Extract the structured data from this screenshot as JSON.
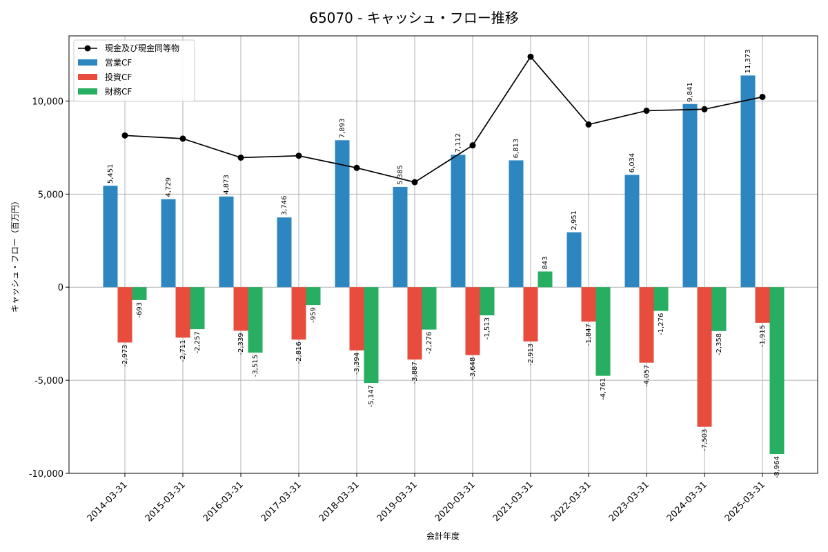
{
  "chart_data": {
    "type": "bar",
    "title": "65070 - キャッシュ・フロー推移",
    "xlabel": "会計年度",
    "ylabel": "キャッシュ・フロー（百万円）",
    "ylim": [
      -10000,
      13500
    ],
    "yticks": [
      -10000,
      -5000,
      0,
      5000,
      10000
    ],
    "ytick_labels": [
      "-10,000",
      "-5,000",
      "0",
      "5,000",
      "10,000"
    ],
    "grid": true,
    "legend_position": "top-left",
    "categories": [
      "2014-03-31",
      "2015-03-31",
      "2016-03-31",
      "2017-03-31",
      "2018-03-31",
      "2019-03-31",
      "2020-03-31",
      "2021-03-31",
      "2022-03-31",
      "2023-03-31",
      "2024-03-31",
      "2025-03-31"
    ],
    "series": [
      {
        "name": "営業CF",
        "kind": "bar",
        "color": "#2e86c1",
        "values": [
          5451,
          4729,
          4873,
          3746,
          7893,
          5385,
          7112,
          6813,
          2951,
          6034,
          9841,
          11373
        ],
        "labels": [
          "5,451",
          "4,729",
          "4,873",
          "3,746",
          "7,893",
          "5,385",
          "7,112",
          "6,813",
          "2,951",
          "6,034",
          "9,841",
          "11,373"
        ]
      },
      {
        "name": "投資CF",
        "kind": "bar",
        "color": "#e74c3c",
        "values": [
          -2973,
          -2711,
          -2339,
          -2816,
          -3394,
          -3887,
          -3648,
          -2913,
          -1847,
          -4057,
          -7503,
          -1915
        ],
        "labels": [
          "-2,973",
          "-2,711",
          "-2,339",
          "-2,816",
          "-3,394",
          "-3,887",
          "-3,648",
          "-2,913",
          "-1,847",
          "-4,057",
          "-7,503",
          "-1,915"
        ]
      },
      {
        "name": "財務CF",
        "kind": "bar",
        "color": "#27ae60",
        "values": [
          -693,
          -2257,
          -3515,
          -959,
          -5147,
          -2276,
          -1513,
          843,
          -4761,
          -1276,
          -2358,
          -8964
        ],
        "labels": [
          "-693",
          "-2,257",
          "-3,515",
          "-959",
          "-5,147",
          "-2,276",
          "-1,513",
          "843",
          "-4,761",
          "-1,276",
          "-2,358",
          "-8,964"
        ]
      },
      {
        "name": "現金及び現金同等物",
        "kind": "line",
        "color": "#000000",
        "values": [
          8150,
          7980,
          6960,
          7060,
          6410,
          5640,
          7620,
          12380,
          8740,
          9480,
          9560,
          10220
        ]
      }
    ]
  }
}
